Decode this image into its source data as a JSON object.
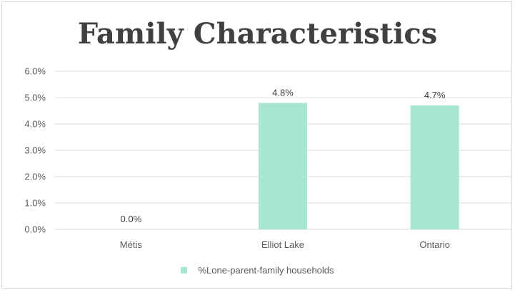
{
  "chart_data": {
    "type": "bar",
    "title": "Family Characteristics",
    "categories": [
      "Métis",
      "Elliot Lake",
      "Ontario"
    ],
    "series": [
      {
        "name": "%Lone-parent-family households",
        "values": [
          0.0,
          4.8,
          4.7
        ],
        "data_labels": [
          "0.0%",
          "4.8%",
          "4.7%"
        ],
        "color": "#a8e6d2"
      }
    ],
    "xlabel": "",
    "ylabel": "",
    "ylim": [
      0,
      6
    ],
    "yticks": [
      0,
      1,
      2,
      3,
      4,
      5,
      6
    ],
    "ytick_labels": [
      "0.0%",
      "1.0%",
      "2.0%",
      "3.0%",
      "4.0%",
      "5.0%",
      "6.0%"
    ],
    "grid": true,
    "legend_position": "bottom",
    "colors": {
      "gridline": "#d9d9d9",
      "axis_text": "#595959",
      "title": "#404040"
    }
  }
}
